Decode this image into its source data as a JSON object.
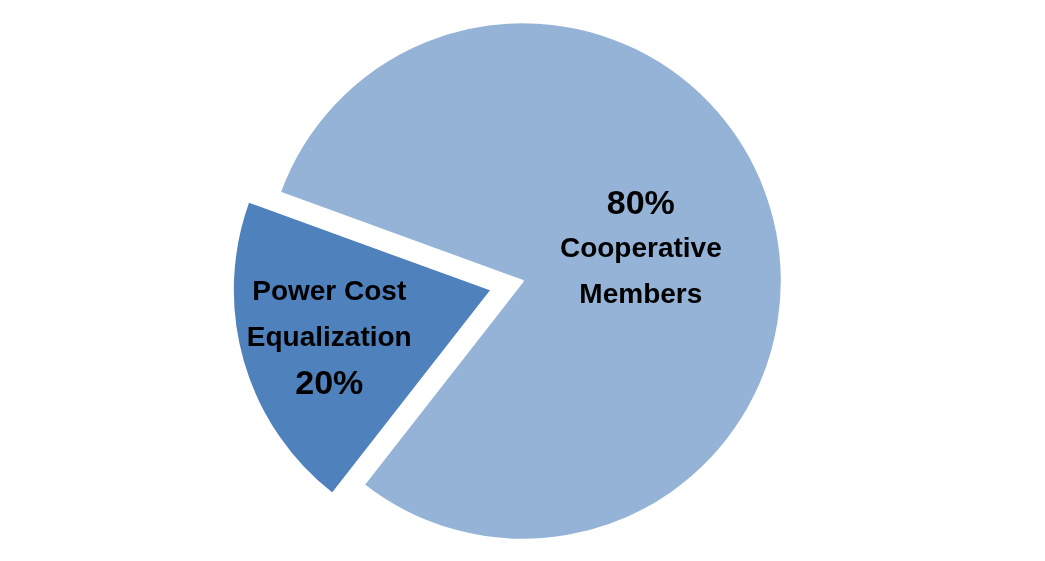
{
  "chart_data": {
    "type": "pie",
    "categories": [
      "Cooperative Members",
      "Power Cost Equalization"
    ],
    "values": [
      80,
      20
    ],
    "colors": [
      "#95b3d7",
      "#4f81bd"
    ],
    "value_labels": [
      "80%",
      "20%"
    ]
  }
}
